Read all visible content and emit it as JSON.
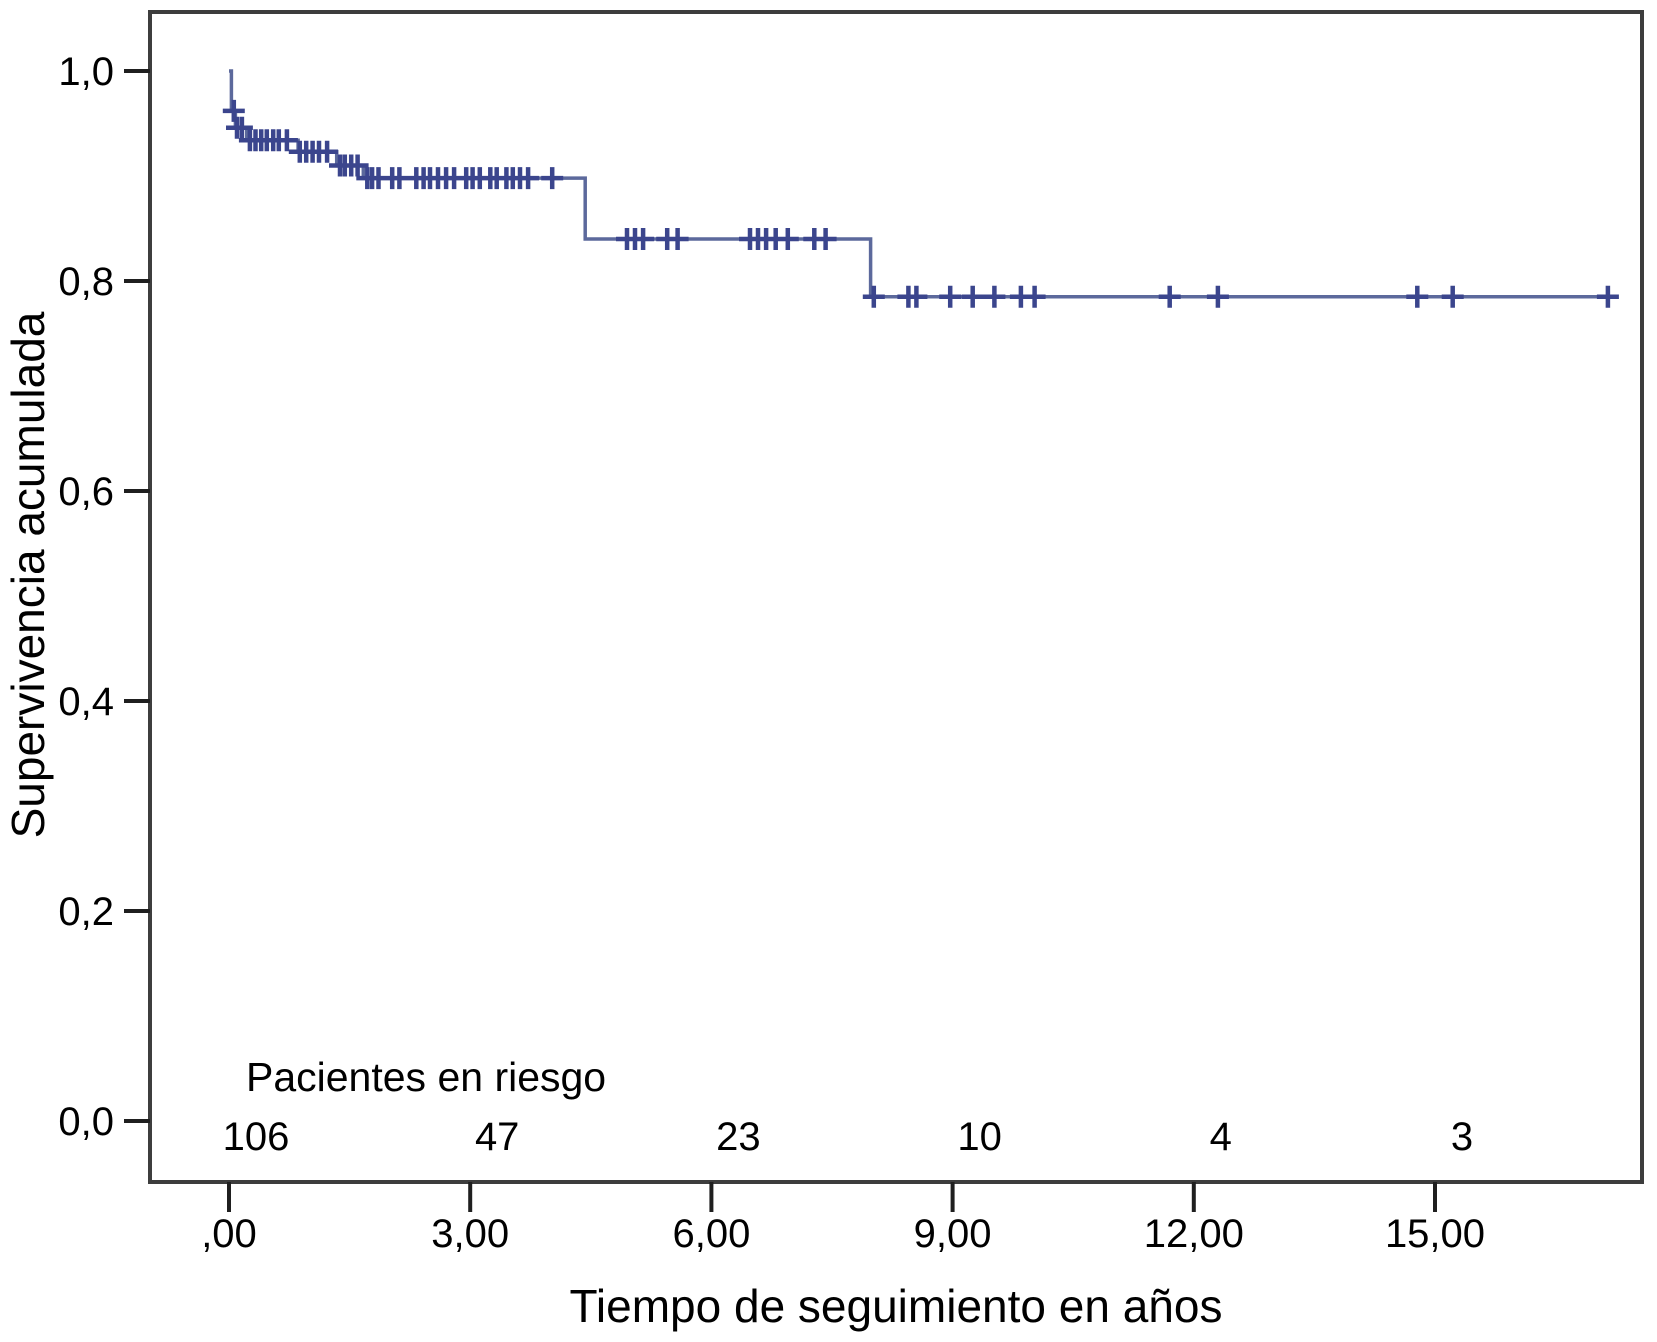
{
  "chart_data": {
    "type": "line",
    "subtype": "kaplan-meier-step",
    "title": "",
    "xlabel": "Tiempo de seguimiento en años",
    "ylabel": "Supervivencia acumulada",
    "xlim": [
      -0.98,
      17.58
    ],
    "ylim": [
      -0.06,
      1.06
    ],
    "grid": false,
    "legend": "none",
    "xticks": [
      {
        "value": 0,
        "label": ",00"
      },
      {
        "value": 3,
        "label": "3,00"
      },
      {
        "value": 6,
        "label": "6,00"
      },
      {
        "value": 9,
        "label": "9,00"
      },
      {
        "value": 12,
        "label": "12,00"
      },
      {
        "value": 15,
        "label": "15,00"
      }
    ],
    "yticks": [
      {
        "value": 1.0,
        "label": "1,0"
      },
      {
        "value": 0.8,
        "label": "0,8"
      },
      {
        "value": 0.6,
        "label": "0,6"
      },
      {
        "value": 0.4,
        "label": "0,4"
      },
      {
        "value": 0.2,
        "label": "0,2"
      },
      {
        "value": 0.0,
        "label": "0,0"
      }
    ],
    "series": [
      {
        "name": "Supervivencia acumulada",
        "steps": [
          [
            0.0,
            1.0
          ],
          [
            0.03,
            0.962
          ],
          [
            0.08,
            0.946
          ],
          [
            0.22,
            0.934
          ],
          [
            0.86,
            0.923
          ],
          [
            1.34,
            0.91
          ],
          [
            1.67,
            0.898
          ],
          [
            4.43,
            0.84
          ],
          [
            7.98,
            0.785
          ]
        ],
        "end_time": 17.25,
        "censors": [
          [
            0.06,
            0.962
          ],
          [
            0.1,
            0.946
          ],
          [
            0.16,
            0.946
          ],
          [
            0.26,
            0.934
          ],
          [
            0.33,
            0.934
          ],
          [
            0.4,
            0.934
          ],
          [
            0.47,
            0.934
          ],
          [
            0.55,
            0.934
          ],
          [
            0.62,
            0.934
          ],
          [
            0.72,
            0.934
          ],
          [
            0.88,
            0.923
          ],
          [
            0.96,
            0.923
          ],
          [
            1.04,
            0.923
          ],
          [
            1.12,
            0.923
          ],
          [
            1.22,
            0.923
          ],
          [
            1.38,
            0.91
          ],
          [
            1.44,
            0.91
          ],
          [
            1.52,
            0.91
          ],
          [
            1.6,
            0.91
          ],
          [
            1.72,
            0.898
          ],
          [
            1.78,
            0.898
          ],
          [
            1.86,
            0.898
          ],
          [
            2.03,
            0.898
          ],
          [
            2.12,
            0.898
          ],
          [
            2.33,
            0.898
          ],
          [
            2.42,
            0.898
          ],
          [
            2.5,
            0.898
          ],
          [
            2.6,
            0.898
          ],
          [
            2.7,
            0.898
          ],
          [
            2.8,
            0.898
          ],
          [
            2.95,
            0.898
          ],
          [
            3.03,
            0.898
          ],
          [
            3.12,
            0.898
          ],
          [
            3.25,
            0.898
          ],
          [
            3.33,
            0.898
          ],
          [
            3.45,
            0.898
          ],
          [
            3.53,
            0.898
          ],
          [
            3.62,
            0.898
          ],
          [
            3.72,
            0.898
          ],
          [
            4.02,
            0.898
          ],
          [
            4.95,
            0.84
          ],
          [
            5.05,
            0.84
          ],
          [
            5.15,
            0.84
          ],
          [
            5.45,
            0.84
          ],
          [
            5.58,
            0.84
          ],
          [
            6.48,
            0.84
          ],
          [
            6.58,
            0.84
          ],
          [
            6.68,
            0.84
          ],
          [
            6.8,
            0.84
          ],
          [
            6.95,
            0.84
          ],
          [
            7.28,
            0.84
          ],
          [
            7.42,
            0.84
          ],
          [
            8.02,
            0.785
          ],
          [
            8.45,
            0.785
          ],
          [
            8.55,
            0.785
          ],
          [
            8.97,
            0.785
          ],
          [
            9.25,
            0.785
          ],
          [
            9.52,
            0.785
          ],
          [
            9.85,
            0.785
          ],
          [
            10.02,
            0.785
          ],
          [
            11.7,
            0.785
          ],
          [
            12.3,
            0.785
          ],
          [
            14.78,
            0.785
          ],
          [
            15.22,
            0.785
          ],
          [
            17.15,
            0.785
          ]
        ]
      }
    ],
    "risk_table": {
      "label": "Pacientes en riesgo",
      "times": [
        0,
        3,
        6,
        9,
        12,
        15
      ],
      "counts": [
        106,
        47,
        23,
        10,
        4,
        3
      ]
    },
    "colors": {
      "line": "#5c699c",
      "censor": "#3b458d",
      "frame": "#3d3d3d",
      "tick": "#1f1f1f",
      "text": "#000000",
      "background": "#ffffff"
    }
  }
}
